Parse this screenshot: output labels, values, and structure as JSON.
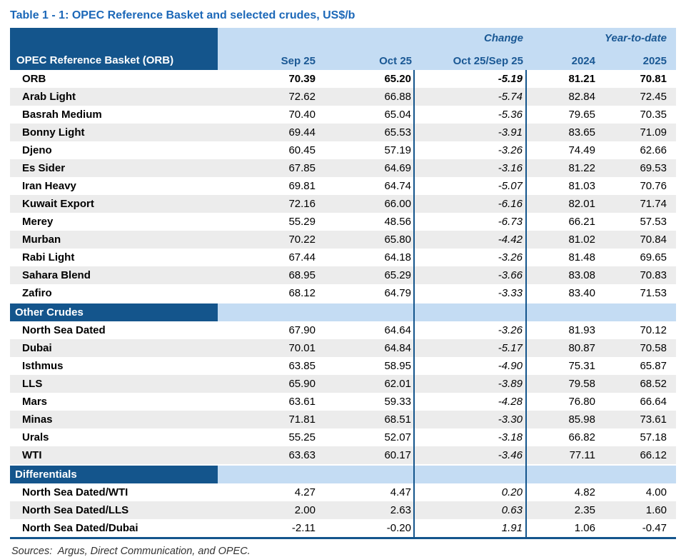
{
  "title": "Table 1 - 1: OPEC Reference Basket and selected crudes, US$/b",
  "footer": {
    "sources": "Sources:  Argus, Direct Communication, and OPEC."
  },
  "colors": {
    "title_blue": "#1C68B8",
    "header_dark_blue": "#14558C",
    "header_light_blue": "#C4DCF3",
    "header_text_blue": "#1A5894",
    "stripe_gray": "#ECECEC",
    "divider_blue": "#14558C"
  },
  "table": {
    "corner_label": "OPEC Reference Basket (ORB)",
    "group_headers": {
      "change": "Change",
      "year_to_date": "Year-to-date"
    },
    "columns": [
      "Sep 25",
      "Oct 25",
      "Oct 25/Sep 25",
      "2024",
      "2025"
    ],
    "emphasized_row": "ORB",
    "sections": [
      {
        "header": null,
        "rows": [
          [
            "ORB",
            "70.39",
            "65.20",
            "-5.19",
            "81.21",
            "70.81"
          ],
          [
            "Arab Light",
            "72.62",
            "66.88",
            "-5.74",
            "82.84",
            "72.45"
          ],
          [
            "Basrah Medium",
            "70.40",
            "65.04",
            "-5.36",
            "79.65",
            "70.35"
          ],
          [
            "Bonny Light",
            "69.44",
            "65.53",
            "-3.91",
            "83.65",
            "71.09"
          ],
          [
            "Djeno",
            "60.45",
            "57.19",
            "-3.26",
            "74.49",
            "62.66"
          ],
          [
            "Es Sider",
            "67.85",
            "64.69",
            "-3.16",
            "81.22",
            "69.53"
          ],
          [
            "Iran Heavy",
            "69.81",
            "64.74",
            "-5.07",
            "81.03",
            "70.76"
          ],
          [
            "Kuwait Export",
            "72.16",
            "66.00",
            "-6.16",
            "82.01",
            "71.74"
          ],
          [
            "Merey",
            "55.29",
            "48.56",
            "-6.73",
            "66.21",
            "57.53"
          ],
          [
            "Murban",
            "70.22",
            "65.80",
            "-4.42",
            "81.02",
            "70.84"
          ],
          [
            "Rabi Light",
            "67.44",
            "64.18",
            "-3.26",
            "81.48",
            "69.65"
          ],
          [
            "Sahara Blend",
            "68.95",
            "65.29",
            "-3.66",
            "83.08",
            "70.83"
          ],
          [
            "Zafiro",
            "68.12",
            "64.79",
            "-3.33",
            "83.40",
            "71.53"
          ]
        ]
      },
      {
        "header": "Other Crudes",
        "rows": [
          [
            "North Sea Dated",
            "67.90",
            "64.64",
            "-3.26",
            "81.93",
            "70.12"
          ],
          [
            "Dubai",
            "70.01",
            "64.84",
            "-5.17",
            "80.87",
            "70.58"
          ],
          [
            "Isthmus",
            "63.85",
            "58.95",
            "-4.90",
            "75.31",
            "65.87"
          ],
          [
            "LLS",
            "65.90",
            "62.01",
            "-3.89",
            "79.58",
            "68.52"
          ],
          [
            "Mars",
            "63.61",
            "59.33",
            "-4.28",
            "76.80",
            "66.64"
          ],
          [
            "Minas",
            "71.81",
            "68.51",
            "-3.30",
            "85.98",
            "73.61"
          ],
          [
            "Urals",
            "55.25",
            "52.07",
            "-3.18",
            "66.82",
            "57.18"
          ],
          [
            "WTI",
            "63.63",
            "60.17",
            "-3.46",
            "77.11",
            "66.12"
          ]
        ]
      },
      {
        "header": "Differentials",
        "rows": [
          [
            "North Sea Dated/WTI",
            "4.27",
            "4.47",
            "0.20",
            "4.82",
            "4.00"
          ],
          [
            "North Sea Dated/LLS",
            "2.00",
            "2.63",
            "0.63",
            "2.35",
            "1.60"
          ],
          [
            "North Sea Dated/Dubai",
            "-2.11",
            "-0.20",
            "1.91",
            "1.06",
            "-0.47"
          ]
        ]
      }
    ]
  }
}
